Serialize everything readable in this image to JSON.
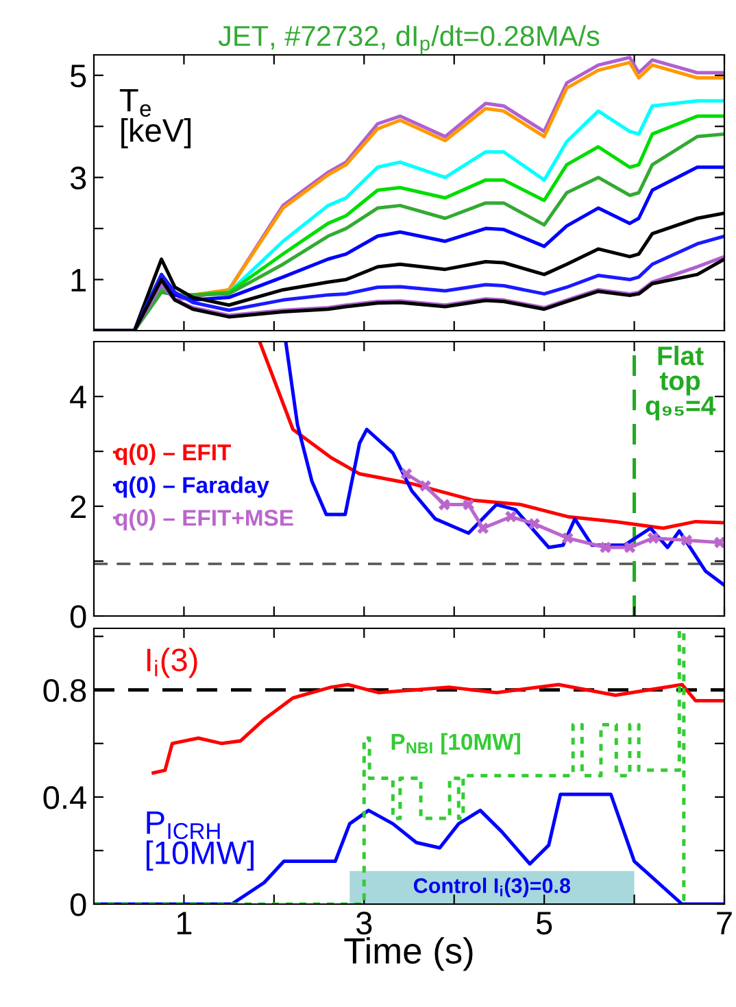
{
  "chart_data": [
    {
      "type": "line",
      "title": "JET, #72732, dI$_{p}$/dt=0.28MA/s",
      "ylabel": "T$_{e}$ [keV]",
      "tick_labels": "y",
      "x": [
        0,
        0.45,
        0.75,
        0.9,
        1.1,
        1.5,
        2.1,
        2.6,
        2.8,
        3.15,
        3.4,
        3.9,
        4.35,
        4.55,
        5.0,
        5.25,
        5.6,
        5.95,
        6.05,
        6.2,
        6.7,
        7.0
      ],
      "xlim": [
        0,
        7
      ],
      "xticks": [
        1,
        {
          "value": 2,
          "label": null
        },
        3,
        {
          "value": 4,
          "label": null
        },
        5,
        {
          "value": 6,
          "label": null
        },
        7
      ],
      "ylim": [
        0,
        5.4
      ],
      "yticks": [
        1,
        {
          "value": 2,
          "label": null
        },
        3,
        {
          "value": 4,
          "label": null
        },
        5
      ],
      "series": [
        {
          "color": "#b060d0",
          "values": [
            0,
            0,
            0.95,
            0.6,
            0.65,
            0.8,
            2.45,
            3.1,
            3.3,
            4.05,
            4.2,
            3.8,
            4.45,
            4.4,
            3.9,
            4.85,
            5.2,
            5.35,
            5.05,
            5.3,
            5.05,
            5.05
          ]
        },
        {
          "color": "#ff9900",
          "values": [
            null,
            null,
            null,
            null,
            0.7,
            0.8,
            2.4,
            3.05,
            3.25,
            3.95,
            4.12,
            3.72,
            4.35,
            4.3,
            3.8,
            4.75,
            5.1,
            5.25,
            4.95,
            5.2,
            4.95,
            4.95
          ]
        },
        {
          "color": "#00ffff",
          "values": [
            null,
            null,
            null,
            null,
            null,
            0.75,
            1.75,
            2.45,
            2.6,
            3.2,
            3.3,
            3.0,
            3.5,
            3.5,
            2.95,
            3.7,
            4.3,
            3.9,
            3.85,
            4.4,
            4.5,
            4.5
          ]
        },
        {
          "color": "#00dd00",
          "values": [
            0,
            0,
            0.8,
            0.7,
            0.7,
            0.75,
            1.5,
            2.1,
            2.25,
            2.75,
            2.8,
            2.6,
            2.95,
            2.95,
            2.55,
            3.25,
            3.6,
            3.2,
            3.25,
            3.85,
            4.2,
            4.2
          ]
        },
        {
          "color": "#33aa33",
          "values": [
            0,
            0,
            0.75,
            0.7,
            0.7,
            0.72,
            1.3,
            1.85,
            2.0,
            2.4,
            2.45,
            2.2,
            2.5,
            2.5,
            2.07,
            2.7,
            3.0,
            2.65,
            2.7,
            3.25,
            3.8,
            3.85
          ]
        },
        {
          "color": "#0000ff",
          "values": [
            0,
            0,
            1.0,
            0.7,
            0.6,
            0.65,
            1.05,
            1.4,
            1.5,
            1.85,
            1.93,
            1.75,
            2.0,
            1.98,
            1.65,
            2.05,
            2.4,
            2.1,
            2.2,
            2.75,
            3.2,
            3.2
          ]
        },
        {
          "color": "#000000",
          "values": [
            0,
            0,
            1.4,
            0.85,
            0.65,
            0.5,
            0.8,
            0.95,
            1.0,
            1.25,
            1.3,
            1.2,
            1.35,
            1.33,
            1.1,
            1.3,
            1.6,
            1.45,
            1.5,
            1.9,
            2.2,
            2.3
          ]
        },
        {
          "color": "#1a1aff",
          "values": [
            0,
            0,
            1.1,
            0.75,
            0.55,
            0.4,
            0.6,
            0.7,
            0.72,
            0.85,
            0.86,
            0.78,
            0.9,
            0.88,
            0.72,
            0.85,
            1.08,
            1.0,
            1.05,
            1.3,
            1.7,
            1.85
          ]
        },
        {
          "color": "#b060d0",
          "values": [
            0,
            0,
            0.9,
            0.6,
            0.45,
            0.3,
            0.4,
            0.45,
            0.5,
            0.57,
            0.58,
            0.5,
            0.62,
            0.6,
            0.45,
            0.6,
            0.8,
            0.72,
            0.75,
            0.95,
            1.25,
            1.45
          ]
        },
        {
          "color": "#000000",
          "values": [
            0,
            0,
            1.0,
            0.6,
            0.42,
            0.27,
            0.37,
            0.42,
            0.47,
            0.54,
            0.55,
            0.47,
            0.59,
            0.57,
            0.42,
            0.57,
            0.77,
            0.69,
            0.72,
            0.92,
            1.1,
            1.4
          ]
        }
      ]
    },
    {
      "type": "line",
      "tick_labels": "y",
      "legend": "center left",
      "annotations": [
        "Flat top q₉₅=4"
      ],
      "xlim": [
        0,
        7
      ],
      "xticks": [
        1,
        {
          "value": 2,
          "label": null
        },
        3,
        {
          "value": 4,
          "label": null
        },
        5,
        {
          "value": 6,
          "label": null
        },
        7
      ],
      "ylim": [
        0,
        5
      ],
      "yticks": [
        0,
        {
          "value": 1,
          "label": null
        },
        2,
        {
          "value": 3,
          "label": null
        },
        4
      ],
      "ref_lines": [
        {
          "axis": "y",
          "value": 0.95,
          "color": "#555555",
          "line_style": "dashed"
        },
        {
          "axis": "x",
          "value": 6.0,
          "color": "#22aa22",
          "line_style": "dashed"
        }
      ],
      "series": [
        {
          "name": "q(0) – EFIT",
          "color": "#ff0000",
          "x": [
            1.84,
            2.21,
            2.63,
            2.95,
            3.53,
            4.21,
            4.74,
            5.26,
            5.79,
            6.32,
            6.68,
            7.0
          ],
          "values": [
            5.0,
            3.4,
            2.89,
            2.59,
            2.41,
            2.11,
            2.03,
            1.81,
            1.72,
            1.6,
            1.72,
            1.7
          ]
        },
        {
          "name": "q(0) – Faraday",
          "color": "#0000ff",
          "x": [
            2.13,
            2.26,
            2.42,
            2.58,
            2.79,
            2.95,
            3.03,
            3.32,
            3.53,
            3.79,
            4.16,
            4.47,
            4.68,
            5.05,
            5.21,
            5.34,
            5.53,
            5.89,
            6.18,
            6.37,
            6.5,
            6.79,
            7.0
          ],
          "values": [
            5.0,
            3.49,
            2.46,
            1.85,
            1.85,
            3.15,
            3.4,
            2.97,
            2.28,
            1.77,
            1.51,
            2.03,
            1.94,
            1.25,
            1.29,
            1.77,
            1.29,
            1.29,
            1.6,
            1.25,
            1.55,
            0.82,
            0.56
          ]
        },
        {
          "name": "q(0) – EFIT+MSE",
          "color": "#bb66cc",
          "marker": "cross",
          "x": [
            3.47,
            3.68,
            3.89,
            4.16,
            4.32,
            4.63,
            4.89,
            5.26,
            5.68,
            5.95,
            6.21,
            6.58,
            6.95
          ],
          "values": [
            2.59,
            2.37,
            2.03,
            2.03,
            1.6,
            1.81,
            1.68,
            1.42,
            1.25,
            1.25,
            1.42,
            1.38,
            1.34
          ]
        }
      ]
    },
    {
      "type": "line",
      "xlabel": "Time (s)",
      "xlim": [
        0,
        7
      ],
      "xticks": [
        1,
        {
          "value": 2,
          "label": null
        },
        3,
        {
          "value": 4,
          "label": null
        },
        5,
        {
          "value": 6,
          "label": null
        },
        7
      ],
      "ylim": [
        0,
        1.03
      ],
      "yticks": [
        0,
        {
          "value": 0.2,
          "label": null
        },
        0.4,
        {
          "value": 0.6,
          "label": null
        },
        0.8,
        {
          "value": 1.0,
          "label": null
        }
      ],
      "ref_lines": [
        {
          "axis": "y",
          "value": 0.8,
          "color": "#000000",
          "line_style": "dashed"
        }
      ],
      "bands": [
        {
          "axis": "x",
          "from": 2.84,
          "to": 6.0,
          "label": "Control I$_{i}$(3)=0.8",
          "color": "#a8d8dc"
        }
      ],
      "series": [
        {
          "name": "I$_{i}$(3)",
          "color": "#ff0000",
          "x": [
            0.66,
            0.79,
            0.87,
            1.16,
            1.42,
            1.63,
            1.89,
            2.21,
            2.63,
            2.82,
            3.16,
            3.95,
            4.47,
            5.16,
            5.79,
            6.53,
            6.68,
            7.0
          ],
          "values": [
            0.49,
            0.5,
            0.6,
            0.62,
            0.6,
            0.61,
            0.69,
            0.77,
            0.81,
            0.82,
            0.79,
            0.81,
            0.79,
            0.82,
            0.78,
            0.82,
            0.76,
            0.76
          ]
        },
        {
          "name": "P$_{ICRH}$ [10MW]",
          "color": "#0000ff",
          "x": [
            0,
            1.53,
            1.89,
            2.11,
            2.68,
            2.84,
            3.05,
            3.32,
            3.58,
            3.84,
            4.05,
            4.29,
            4.53,
            4.84,
            5.05,
            5.18,
            5.74,
            6.0,
            6.53,
            7.0
          ],
          "values": [
            0,
            0,
            0.08,
            0.16,
            0.16,
            0.3,
            0.35,
            0.3,
            0.23,
            0.21,
            0.3,
            0.35,
            0.27,
            0.15,
            0.22,
            0.41,
            0.41,
            0.16,
            0,
            0
          ]
        },
        {
          "name": "P$_{NBI}$ [10MW]",
          "color": "#33cc33",
          "line_style": "dotted",
          "x": [
            0,
            3.0,
            3.0,
            3.06,
            3.06,
            3.32,
            3.32,
            3.4,
            3.4,
            3.63,
            3.63,
            3.95,
            3.95,
            4.05,
            4.05,
            4.1,
            4.1,
            5.32,
            5.32,
            5.42,
            5.42,
            5.63,
            5.63,
            5.8,
            5.8,
            5.95,
            5.95,
            6.05,
            6.05,
            6.5,
            6.5,
            6.55,
            6.55
          ],
          "values": [
            0,
            0,
            0.62,
            0.62,
            0.47,
            0.47,
            0.32,
            0.32,
            0.47,
            0.47,
            0.32,
            0.32,
            0.47,
            0.47,
            0.32,
            0.32,
            0.48,
            0.48,
            0.67,
            0.67,
            0.48,
            0.48,
            0.67,
            0.67,
            0.48,
            0.48,
            0.67,
            0.67,
            0.5,
            0.5,
            1.02,
            1.02,
            0
          ]
        }
      ]
    }
  ]
}
